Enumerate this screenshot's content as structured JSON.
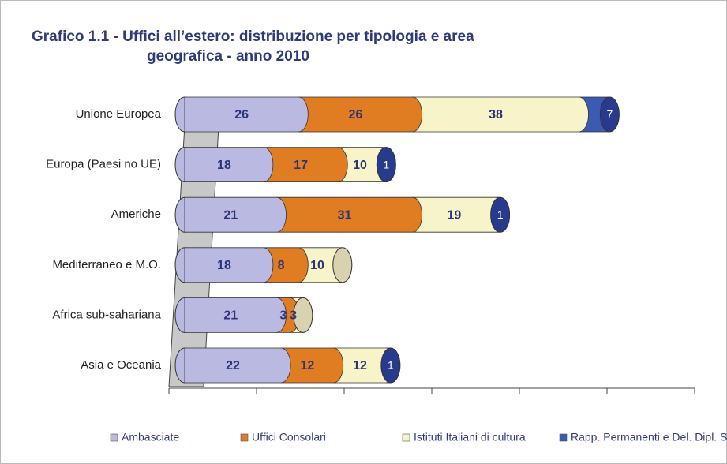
{
  "chart_data": {
    "type": "stacked-bar-horizontal",
    "title": [
      "Grafico 1.1 - Uffici all’estero: distribuzione per tipologia e area",
      "geografica - anno 2010"
    ],
    "categories": [
      "Unione Europea",
      "Europa (Paesi no UE)",
      "Americhe",
      "Mediterraneo e M.O.",
      "Africa sub-sahariana",
      "Asia e Oceania"
    ],
    "series": [
      {
        "name": "Ambasciate",
        "color": "#b9b9e2",
        "values": [
          26,
          18,
          21,
          18,
          21,
          22
        ]
      },
      {
        "name": "Uffici Consolari",
        "color": "#e07c22",
        "values": [
          26,
          17,
          31,
          8,
          3,
          12
        ]
      },
      {
        "name": "Istituti Italiani di cultura",
        "color": "#f8f4c9",
        "values": [
          38,
          10,
          19,
          10,
          3,
          12
        ]
      },
      {
        "name": "Rapp. Permanenti e Del. Dipl. Speciali",
        "color": "#3b5bb2",
        "values": [
          7,
          1,
          1,
          null,
          null,
          1
        ]
      }
    ],
    "xlim": [
      0,
      120
    ],
    "xticks": [
      0,
      20,
      40,
      60,
      80,
      100,
      120
    ]
  }
}
